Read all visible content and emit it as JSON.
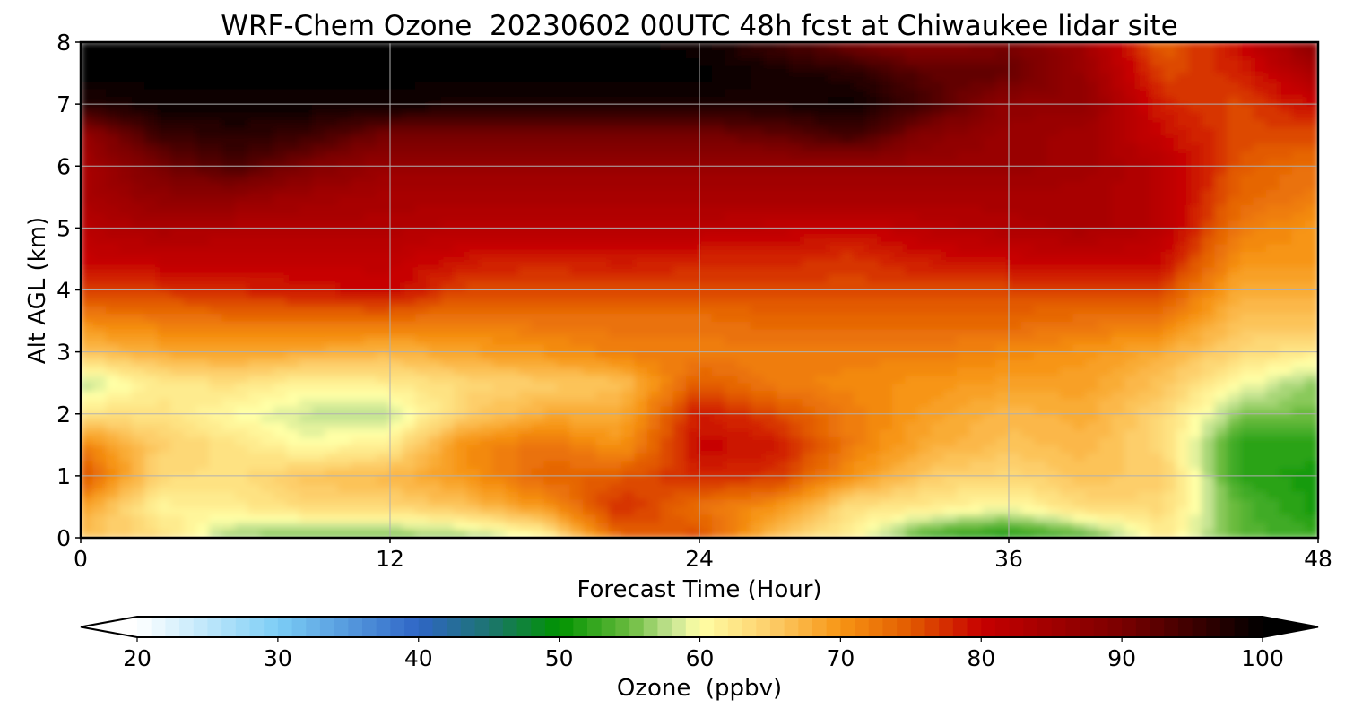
{
  "chart_data": {
    "type": "heatmap",
    "title": "WRF-Chem Ozone  20230602 00UTC 48h fcst at Chiwaukee lidar site",
    "xlabel": "Forecast Time (Hour)",
    "ylabel": "Alt AGL (km)",
    "xlim": [
      0,
      48
    ],
    "ylim": [
      0,
      8
    ],
    "xticks": [
      0,
      12,
      24,
      36,
      48
    ],
    "yticks": [
      0,
      1,
      2,
      3,
      4,
      5,
      6,
      7,
      8
    ],
    "grid": true,
    "colorbar": {
      "label": "Ozone  (ppbv)",
      "min": 20,
      "max": 100,
      "ticks": [
        20,
        30,
        40,
        50,
        60,
        70,
        80,
        90,
        100
      ],
      "extend": "both",
      "under_color": "#ffffff",
      "over_color": "#000000",
      "stops": [
        {
          "v": 20,
          "c": "#ffffff"
        },
        {
          "v": 30,
          "c": "#7ccdf5"
        },
        {
          "v": 40,
          "c": "#2f66c6"
        },
        {
          "v": 45,
          "c": "#1d7470"
        },
        {
          "v": 50,
          "c": "#009300"
        },
        {
          "v": 55,
          "c": "#6abb3e"
        },
        {
          "v": 58,
          "c": "#c6e493"
        },
        {
          "v": 60,
          "c": "#ffffa6"
        },
        {
          "v": 65,
          "c": "#fdce6a"
        },
        {
          "v": 70,
          "c": "#f79514"
        },
        {
          "v": 75,
          "c": "#e25a00"
        },
        {
          "v": 80,
          "c": "#c70000"
        },
        {
          "v": 90,
          "c": "#7a0000"
        },
        {
          "v": 100,
          "c": "#000000"
        }
      ]
    },
    "x_hours": [
      0,
      3,
      6,
      9,
      12,
      15,
      18,
      21,
      24,
      27,
      30,
      33,
      36,
      39,
      42,
      45,
      48
    ],
    "y_km": [
      0,
      0.5,
      1,
      1.5,
      2,
      2.5,
      3,
      3.5,
      4,
      4.5,
      5,
      5.5,
      6,
      6.5,
      7,
      7.5,
      8
    ],
    "ozone_ppbv": [
      [
        66,
        64,
        56,
        55,
        55,
        56,
        60,
        74,
        76,
        66,
        61,
        52,
        50,
        53,
        62,
        54,
        53
      ],
      [
        69,
        61,
        62,
        64,
        64,
        66,
        70,
        78,
        73,
        70,
        63,
        62,
        60,
        64,
        64,
        54,
        51
      ],
      [
        76,
        64,
        63,
        66,
        67,
        70,
        74,
        75,
        78,
        77,
        70,
        65,
        64,
        66,
        65,
        52,
        51
      ],
      [
        72,
        65,
        63,
        60,
        62,
        71,
        73,
        70,
        80,
        79,
        72,
        68,
        66,
        67,
        64,
        52,
        52
      ],
      [
        63,
        63,
        60,
        58,
        58,
        65,
        68,
        68,
        79,
        76,
        72,
        69,
        67,
        68,
        64,
        56,
        55
      ],
      [
        57,
        62,
        63,
        61,
        62,
        64,
        65,
        66,
        75,
        72,
        71,
        70,
        69,
        69,
        66,
        60,
        56
      ],
      [
        66,
        68,
        69,
        68,
        67,
        69,
        70,
        72,
        72,
        72,
        72,
        72,
        71,
        70,
        68,
        64,
        62
      ],
      [
        71,
        72,
        73,
        73,
        73,
        72,
        73,
        73,
        73,
        74,
        74,
        74,
        74,
        73,
        72,
        66,
        66
      ],
      [
        77,
        77,
        78,
        79,
        80,
        76,
        76,
        76,
        76,
        76,
        76,
        76,
        76,
        76,
        76,
        68,
        68
      ],
      [
        80,
        81,
        81,
        81,
        81,
        79,
        78,
        79,
        78,
        78,
        77,
        79,
        80,
        81,
        80,
        70,
        70
      ],
      [
        82,
        84,
        83,
        83,
        83,
        82,
        82,
        82,
        82,
        81,
        80,
        82,
        83,
        84,
        82,
        72,
        70
      ],
      [
        84,
        87,
        87,
        85,
        84,
        84,
        84,
        84,
        84,
        84,
        84,
        84,
        84,
        84,
        82,
        74,
        72
      ],
      [
        84,
        90,
        94,
        89,
        86,
        86,
        86,
        86,
        86,
        86,
        86,
        86,
        86,
        85,
        82,
        75,
        73
      ],
      [
        86,
        95,
        97,
        95,
        90,
        90,
        90,
        90,
        90,
        92,
        95,
        88,
        86,
        85,
        80,
        76,
        76
      ],
      [
        97,
        99,
        99,
        99,
        99,
        98,
        98,
        98,
        98,
        98,
        99,
        94,
        87,
        87,
        78,
        76,
        80
      ],
      [
        100,
        100,
        100,
        100,
        100,
        100,
        100,
        100,
        100,
        98,
        97,
        92,
        92,
        86,
        76,
        78,
        84
      ],
      [
        100,
        100,
        100,
        100,
        100,
        100,
        100,
        100,
        99,
        95,
        90,
        88,
        90,
        85,
        74,
        80,
        88
      ]
    ]
  }
}
